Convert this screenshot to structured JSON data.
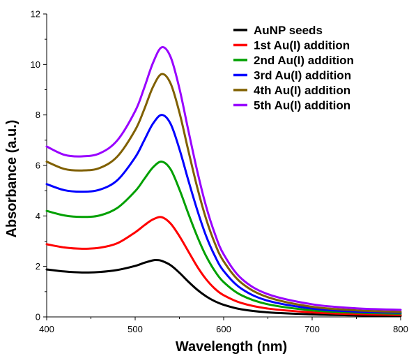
{
  "chart_data": {
    "type": "line",
    "title": "",
    "xlabel": "Wavelength (nm)",
    "ylabel": "Absorbance (a.u.)",
    "xlim": [
      400,
      800
    ],
    "ylim": [
      0,
      12
    ],
    "x_ticks": [
      400,
      500,
      600,
      700,
      800
    ],
    "y_ticks": [
      0,
      2,
      4,
      6,
      8,
      10,
      12
    ],
    "grid": false,
    "legend_position": "top-right",
    "series": [
      {
        "name": "AuNP seeds",
        "color": "#000000",
        "points": [
          [
            400,
            1.88
          ],
          [
            420,
            1.8
          ],
          [
            440,
            1.76
          ],
          [
            460,
            1.78
          ],
          [
            480,
            1.86
          ],
          [
            500,
            2.02
          ],
          [
            510,
            2.14
          ],
          [
            520,
            2.24
          ],
          [
            525,
            2.25
          ],
          [
            530,
            2.22
          ],
          [
            540,
            2.05
          ],
          [
            550,
            1.75
          ],
          [
            560,
            1.4
          ],
          [
            570,
            1.08
          ],
          [
            580,
            0.82
          ],
          [
            590,
            0.62
          ],
          [
            600,
            0.48
          ],
          [
            620,
            0.3
          ],
          [
            650,
            0.18
          ],
          [
            700,
            0.1
          ],
          [
            750,
            0.06
          ],
          [
            800,
            0.04
          ]
        ]
      },
      {
        "name": "1st Au(I) addition",
        "color": "#ff0000",
        "points": [
          [
            400,
            2.88
          ],
          [
            420,
            2.75
          ],
          [
            440,
            2.7
          ],
          [
            460,
            2.74
          ],
          [
            480,
            2.92
          ],
          [
            500,
            3.35
          ],
          [
            510,
            3.62
          ],
          [
            520,
            3.86
          ],
          [
            530,
            3.95
          ],
          [
            540,
            3.7
          ],
          [
            550,
            3.2
          ],
          [
            560,
            2.6
          ],
          [
            570,
            2.0
          ],
          [
            580,
            1.5
          ],
          [
            590,
            1.12
          ],
          [
            600,
            0.86
          ],
          [
            620,
            0.55
          ],
          [
            650,
            0.33
          ],
          [
            700,
            0.18
          ],
          [
            750,
            0.11
          ],
          [
            800,
            0.08
          ]
        ]
      },
      {
        "name": "2nd Au(I) addition",
        "color": "#00a000",
        "points": [
          [
            400,
            4.2
          ],
          [
            420,
            4.02
          ],
          [
            440,
            3.96
          ],
          [
            460,
            4.02
          ],
          [
            480,
            4.32
          ],
          [
            500,
            4.98
          ],
          [
            510,
            5.45
          ],
          [
            520,
            5.92
          ],
          [
            530,
            6.15
          ],
          [
            540,
            5.85
          ],
          [
            550,
            5.05
          ],
          [
            560,
            4.1
          ],
          [
            570,
            3.2
          ],
          [
            580,
            2.42
          ],
          [
            590,
            1.82
          ],
          [
            600,
            1.38
          ],
          [
            620,
            0.86
          ],
          [
            650,
            0.5
          ],
          [
            700,
            0.26
          ],
          [
            750,
            0.17
          ],
          [
            800,
            0.13
          ]
        ]
      },
      {
        "name": "3rd Au(I) addition",
        "color": "#0000ff",
        "points": [
          [
            400,
            5.26
          ],
          [
            420,
            5.02
          ],
          [
            440,
            4.96
          ],
          [
            460,
            5.04
          ],
          [
            480,
            5.42
          ],
          [
            500,
            6.32
          ],
          [
            510,
            6.98
          ],
          [
            520,
            7.65
          ],
          [
            530,
            8.0
          ],
          [
            540,
            7.65
          ],
          [
            550,
            6.65
          ],
          [
            560,
            5.42
          ],
          [
            570,
            4.25
          ],
          [
            580,
            3.22
          ],
          [
            590,
            2.42
          ],
          [
            600,
            1.82
          ],
          [
            620,
            1.12
          ],
          [
            650,
            0.64
          ],
          [
            700,
            0.33
          ],
          [
            750,
            0.21
          ],
          [
            800,
            0.17
          ]
        ]
      },
      {
        "name": "4th Au(I) addition",
        "color": "#806000",
        "points": [
          [
            400,
            6.15
          ],
          [
            420,
            5.86
          ],
          [
            440,
            5.8
          ],
          [
            460,
            5.9
          ],
          [
            480,
            6.36
          ],
          [
            500,
            7.4
          ],
          [
            510,
            8.2
          ],
          [
            520,
            9.1
          ],
          [
            530,
            9.62
          ],
          [
            540,
            9.25
          ],
          [
            550,
            8.1
          ],
          [
            560,
            6.6
          ],
          [
            570,
            5.15
          ],
          [
            580,
            3.9
          ],
          [
            590,
            2.92
          ],
          [
            600,
            2.2
          ],
          [
            620,
            1.35
          ],
          [
            650,
            0.78
          ],
          [
            700,
            0.4
          ],
          [
            750,
            0.26
          ],
          [
            800,
            0.2
          ]
        ]
      },
      {
        "name": "5th Au(I) addition",
        "color": "#9900ff",
        "points": [
          [
            400,
            6.75
          ],
          [
            420,
            6.42
          ],
          [
            440,
            6.36
          ],
          [
            460,
            6.48
          ],
          [
            480,
            7.0
          ],
          [
            500,
            8.15
          ],
          [
            510,
            9.05
          ],
          [
            520,
            10.05
          ],
          [
            530,
            10.68
          ],
          [
            540,
            10.3
          ],
          [
            550,
            9.05
          ],
          [
            560,
            7.4
          ],
          [
            570,
            5.8
          ],
          [
            580,
            4.4
          ],
          [
            590,
            3.3
          ],
          [
            600,
            2.48
          ],
          [
            620,
            1.52
          ],
          [
            650,
            0.9
          ],
          [
            700,
            0.5
          ],
          [
            750,
            0.34
          ],
          [
            800,
            0.28
          ]
        ]
      }
    ]
  }
}
